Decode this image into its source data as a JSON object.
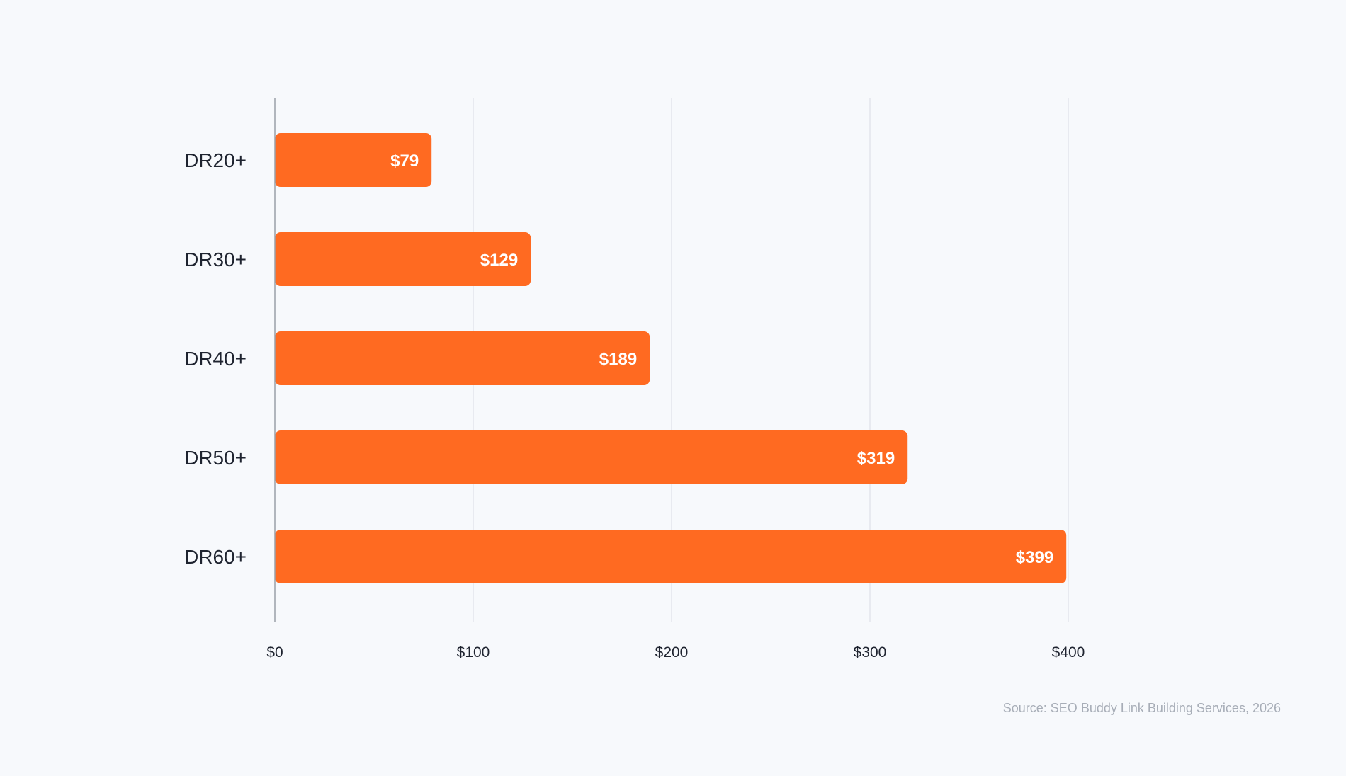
{
  "chart_data": {
    "type": "bar",
    "orientation": "horizontal",
    "categories": [
      "DR20+",
      "DR30+",
      "DR40+",
      "DR50+",
      "DR60+"
    ],
    "values": [
      79,
      129,
      189,
      319,
      399
    ],
    "value_labels": [
      "$79",
      "$129",
      "$189",
      "$319",
      "$399"
    ],
    "xlim": [
      0,
      400
    ],
    "x_ticks": [
      0,
      100,
      200,
      300,
      400
    ],
    "x_tick_labels": [
      "$0",
      "$100",
      "$200",
      "$300",
      "$400"
    ],
    "grid": true,
    "colors": {
      "bar": "#ff6a21",
      "grid": "#e3e6eb",
      "axis": "#9aa0a8",
      "background": "#f7f9fc"
    }
  },
  "source_note": "Source: SEO Buddy Link Building Services, 2026"
}
